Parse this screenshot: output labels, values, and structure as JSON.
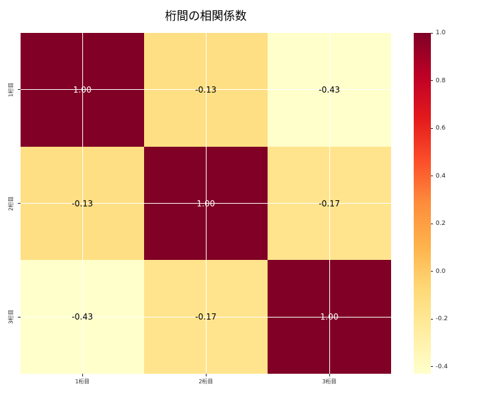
{
  "colors": {
    "background": "#ffffff",
    "title_text": "#000000",
    "tick_text": "#262626",
    "gridline": "#ffffff",
    "annot_light": "#ffffff",
    "annot_dark": "#000000"
  },
  "chart_data": {
    "type": "heatmap",
    "title": "桁間の相関係数",
    "categories": [
      "1桁目",
      "2桁目",
      "3桁目"
    ],
    "rows": [
      "1桁目",
      "2桁目",
      "3桁目"
    ],
    "matrix": [
      [
        1.0,
        -0.13,
        -0.43
      ],
      [
        -0.13,
        1.0,
        -0.17
      ],
      [
        -0.43,
        -0.17,
        1.0
      ]
    ],
    "value_decimals": 2,
    "colormap": "YlOrRd",
    "colormap_stops": [
      "#ffffcc",
      "#ffeda0",
      "#fed976",
      "#feb24c",
      "#fd8d3c",
      "#fc4e2a",
      "#e31a1c",
      "#bd0026",
      "#800026"
    ],
    "vmin": -0.43,
    "vmax": 1.0,
    "grid": true,
    "legend_position": "right-colorbar",
    "colorbar_ticks": [
      {
        "value": 1.0,
        "label": "1.0"
      },
      {
        "value": 0.8,
        "label": "0.8"
      },
      {
        "value": 0.6,
        "label": "0.6"
      },
      {
        "value": 0.4,
        "label": "0.4"
      },
      {
        "value": 0.2,
        "label": "0.2"
      },
      {
        "value": 0.0,
        "label": "0.0"
      },
      {
        "value": -0.2,
        "label": "-0.2"
      },
      {
        "value": -0.4,
        "label": "-0.4"
      }
    ]
  }
}
